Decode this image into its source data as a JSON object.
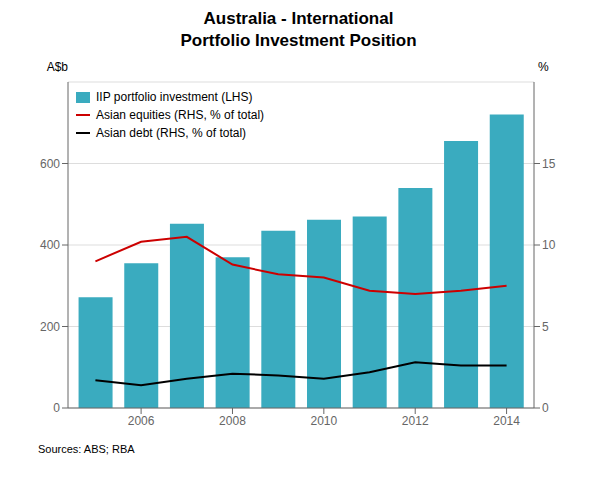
{
  "chart_data": {
    "type": "bar",
    "title": "Australia - International\nPortfolio Investment Position",
    "ylabel": "A$b",
    "y2label": "%",
    "source": "Sources:   ABS; RBA",
    "x": [
      2005,
      2006,
      2007,
      2008,
      2009,
      2010,
      2011,
      2012,
      2013,
      2014
    ],
    "series": [
      {
        "name": "IIP portfolio investment (LHS)",
        "type": "bar",
        "color": "#3AABBF",
        "values": [
          272,
          355,
          452,
          370,
          435,
          462,
          470,
          540,
          655,
          720
        ]
      },
      {
        "name": "Asian equities (RHS, % of total)",
        "type": "line",
        "axis": "y2",
        "color": "#CC0000",
        "values": [
          9.0,
          10.2,
          10.5,
          8.8,
          8.2,
          8.0,
          7.2,
          7.0,
          7.2,
          7.5
        ]
      },
      {
        "name": "Asian debt (RHS, % of total)",
        "type": "line",
        "axis": "y2",
        "color": "#000000",
        "values": [
          1.7,
          1.4,
          1.8,
          2.1,
          2.0,
          1.8,
          2.2,
          2.8,
          2.6,
          2.6
        ]
      }
    ],
    "xlim": [
      2004.4,
      2014.6
    ],
    "xticks": [
      2006,
      2008,
      2010,
      2012,
      2014
    ],
    "ylim": [
      0,
      800
    ],
    "yticks": [
      0,
      200,
      400,
      600
    ],
    "y2lim": [
      0,
      20
    ],
    "y2ticks": [
      0,
      5,
      10,
      15
    ],
    "grid": true,
    "legend": "upper left"
  }
}
